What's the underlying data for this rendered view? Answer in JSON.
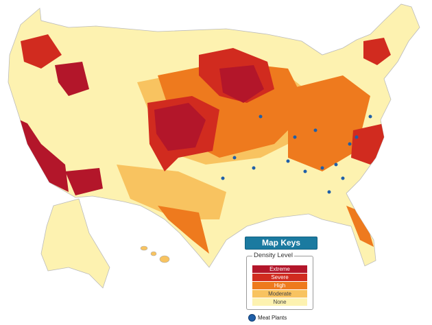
{
  "legend": {
    "title": "Map Keys",
    "subtitle": "Density Level",
    "levels": [
      {
        "label": "Extreme",
        "color": "#b3162a"
      },
      {
        "label": "Severe",
        "color": "#d12b1f"
      },
      {
        "label": "High",
        "color": "#ee7a1e"
      },
      {
        "label": "Moderate",
        "color": "#f8c360"
      },
      {
        "label": "None",
        "color": "#fdf2b0"
      }
    ],
    "marker_label": "Meat Plants",
    "marker_color": "#1f5fa8"
  }
}
